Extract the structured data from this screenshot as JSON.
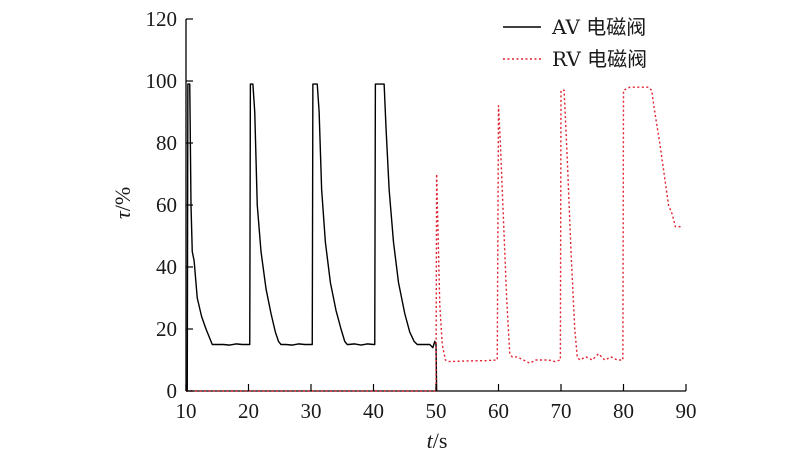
{
  "chart_data": {
    "type": "line",
    "xlabel_italic": "t",
    "xlabel_unit": "/s",
    "ylabel_italic": "τ",
    "ylabel_unit": "/%",
    "xlim": [
      10,
      90
    ],
    "ylim": [
      0,
      120
    ],
    "x_ticks": [
      10,
      20,
      30,
      40,
      50,
      60,
      70,
      80,
      90
    ],
    "y_ticks": [
      0,
      20,
      40,
      60,
      80,
      100,
      120
    ],
    "legend_position": "top-right",
    "grid": false,
    "series": [
      {
        "name": "AV 电磁阀",
        "color": "#000000",
        "style": "solid",
        "points": [
          [
            10,
            0
          ],
          [
            10.2,
            0
          ],
          [
            10.3,
            99
          ],
          [
            10.6,
            99
          ],
          [
            10.8,
            60
          ],
          [
            11.0,
            45
          ],
          [
            11.3,
            42
          ],
          [
            11.8,
            30
          ],
          [
            12.5,
            24
          ],
          [
            13.2,
            20
          ],
          [
            13.8,
            17
          ],
          [
            14.2,
            15
          ],
          [
            15,
            15
          ],
          [
            16,
            15
          ],
          [
            17,
            14.8
          ],
          [
            18,
            15.2
          ],
          [
            19,
            15
          ],
          [
            20,
            15
          ],
          [
            20.2,
            15
          ],
          [
            20.3,
            99
          ],
          [
            20.7,
            99
          ],
          [
            21.0,
            90
          ],
          [
            21.4,
            60
          ],
          [
            22,
            45
          ],
          [
            22.8,
            33
          ],
          [
            23.6,
            25
          ],
          [
            24.3,
            19
          ],
          [
            24.8,
            16
          ],
          [
            25.2,
            15
          ],
          [
            26,
            15
          ],
          [
            27,
            14.8
          ],
          [
            28,
            15.2
          ],
          [
            29,
            15
          ],
          [
            30,
            15
          ],
          [
            30.2,
            15
          ],
          [
            30.3,
            99
          ],
          [
            31.0,
            99
          ],
          [
            31.3,
            90
          ],
          [
            31.7,
            65
          ],
          [
            32.3,
            48
          ],
          [
            33.1,
            35
          ],
          [
            34.0,
            26
          ],
          [
            34.8,
            20
          ],
          [
            35.4,
            16
          ],
          [
            35.8,
            15
          ],
          [
            36,
            15
          ],
          [
            37,
            15.2
          ],
          [
            38,
            14.8
          ],
          [
            39,
            15.2
          ],
          [
            40,
            15
          ],
          [
            40.2,
            15
          ],
          [
            40.3,
            99
          ],
          [
            41.7,
            99
          ],
          [
            42.0,
            85
          ],
          [
            42.5,
            65
          ],
          [
            43.2,
            48
          ],
          [
            44.0,
            35
          ],
          [
            45.0,
            25
          ],
          [
            45.8,
            19
          ],
          [
            46.5,
            16
          ],
          [
            47,
            15
          ],
          [
            48,
            15
          ],
          [
            49,
            15
          ],
          [
            49.5,
            14
          ],
          [
            49.8,
            16
          ],
          [
            50,
            15
          ],
          [
            50.1,
            0
          ]
        ]
      },
      {
        "name": "RV 电磁阀",
        "color": "#e0202e",
        "style": "dashed",
        "points": [
          [
            10,
            0
          ],
          [
            50,
            0
          ],
          [
            50.1,
            70
          ],
          [
            50.6,
            28
          ],
          [
            51,
            15
          ],
          [
            51.5,
            10
          ],
          [
            52,
            9.5
          ],
          [
            55,
            9.7
          ],
          [
            58,
            9.8
          ],
          [
            59.8,
            10
          ],
          [
            60,
            92
          ],
          [
            60.3,
            80
          ],
          [
            60.8,
            55
          ],
          [
            61.3,
            30
          ],
          [
            61.8,
            12
          ],
          [
            62.2,
            11
          ],
          [
            63,
            11
          ],
          [
            64,
            10
          ],
          [
            65,
            9
          ],
          [
            66,
            10
          ],
          [
            67,
            10
          ],
          [
            68,
            10
          ],
          [
            69,
            9.5
          ],
          [
            69.9,
            10
          ],
          [
            70,
            97
          ],
          [
            70.5,
            97
          ],
          [
            71,
            75
          ],
          [
            71.6,
            45
          ],
          [
            72.2,
            20
          ],
          [
            72.6,
            11
          ],
          [
            73,
            10
          ],
          [
            74,
            11
          ],
          [
            75,
            10
          ],
          [
            76,
            12
          ],
          [
            77,
            10
          ],
          [
            78,
            11
          ],
          [
            79,
            10
          ],
          [
            79.9,
            10
          ],
          [
            80,
            97
          ],
          [
            81,
            98
          ],
          [
            82,
            98
          ],
          [
            83,
            98
          ],
          [
            84,
            98
          ],
          [
            84.5,
            97
          ],
          [
            85,
            90
          ],
          [
            85.8,
            80
          ],
          [
            86.5,
            70
          ],
          [
            87.2,
            60
          ],
          [
            87.8,
            57
          ],
          [
            88.3,
            53
          ],
          [
            89,
            53
          ],
          [
            89.3,
            53
          ]
        ]
      }
    ]
  }
}
